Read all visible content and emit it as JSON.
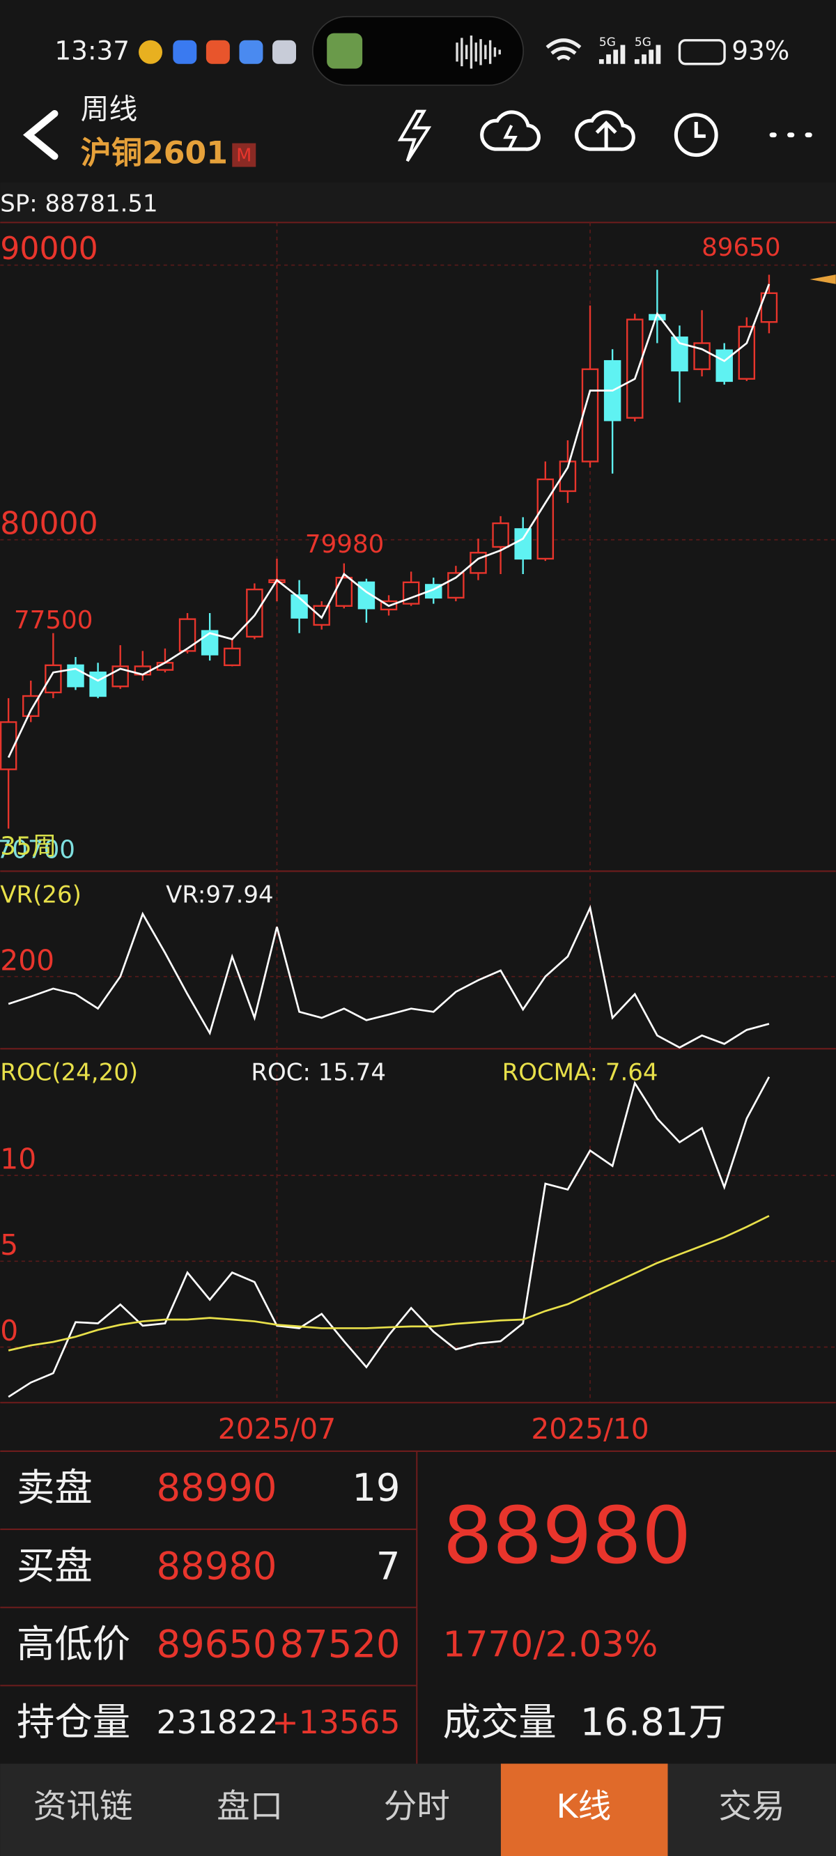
{
  "status_bar": {
    "time": "13:37",
    "network": [
      "5G",
      "5G"
    ],
    "battery": "93%"
  },
  "header": {
    "period": "周线",
    "symbol": "沪铜2601",
    "badge": "M"
  },
  "kline": {
    "type": "candlestick",
    "sp_label": "SP: 88781.51",
    "period_count": "35周",
    "up_color": "#e8352c",
    "down_color": "#5ff2f2",
    "dates": [
      null,
      null,
      null,
      null,
      null,
      null,
      null,
      null,
      null,
      null,
      null,
      null,
      "2025/07",
      null,
      null,
      null,
      null,
      null,
      null,
      null,
      null,
      null,
      null,
      null,
      null,
      null,
      "2025/10",
      null,
      null,
      null,
      null,
      null,
      null,
      null,
      null
    ],
    "candles": [
      {
        "open": 71640,
        "close": 73360,
        "high": 74230,
        "low": 69480
      },
      {
        "open": 73580,
        "close": 74310,
        "high": 74870,
        "low": 73360
      },
      {
        "open": 74440,
        "close": 75430,
        "high": 76600,
        "low": 74230
      },
      {
        "open": 75430,
        "close": 74660,
        "high": 75730,
        "low": 74530
      },
      {
        "open": 75170,
        "close": 74310,
        "high": 75520,
        "low": 74230
      },
      {
        "open": 74660,
        "close": 75390,
        "high": 76160,
        "low": 74570
      },
      {
        "open": 75090,
        "close": 75390,
        "high": 75950,
        "low": 74870
      },
      {
        "open": 75260,
        "close": 75520,
        "high": 76040,
        "low": 75170
      },
      {
        "open": 75950,
        "close": 77110,
        "high": 77330,
        "low": 75860
      },
      {
        "open": 76680,
        "close": 75820,
        "high": 77330,
        "low": 75600
      },
      {
        "open": 75430,
        "close": 76040,
        "high": 76380,
        "low": 75390
      },
      {
        "open": 76470,
        "close": 78190,
        "high": 78410,
        "low": 76380
      },
      {
        "open": 78450,
        "close": 78530,
        "high": 79310,
        "low": 77760
      },
      {
        "open": 77980,
        "close": 77160,
        "high": 78530,
        "low": 76600
      },
      {
        "open": 76900,
        "close": 77590,
        "high": 77760,
        "low": 76730
      },
      {
        "open": 77590,
        "close": 78620,
        "high": 79140,
        "low": 77500
      },
      {
        "open": 78450,
        "close": 77500,
        "high": 78580,
        "low": 76980
      },
      {
        "open": 77460,
        "close": 77760,
        "high": 77980,
        "low": 77240
      },
      {
        "open": 77670,
        "close": 78450,
        "high": 78840,
        "low": 77590
      },
      {
        "open": 78360,
        "close": 77890,
        "high": 78620,
        "low": 77670
      },
      {
        "open": 77890,
        "close": 78790,
        "high": 79050,
        "low": 77760
      },
      {
        "open": 78790,
        "close": 79530,
        "high": 80040,
        "low": 78530
      },
      {
        "open": 79740,
        "close": 80600,
        "high": 80860,
        "low": 78750
      },
      {
        "open": 80390,
        "close": 79310,
        "high": 80820,
        "low": 78750
      },
      {
        "open": 79310,
        "close": 82200,
        "high": 82850,
        "low": 79230
      },
      {
        "open": 81770,
        "close": 82850,
        "high": 83620,
        "low": 81340
      },
      {
        "open": 82850,
        "close": 86210,
        "high": 88530,
        "low": 82630
      },
      {
        "open": 86510,
        "close": 84350,
        "high": 86940,
        "low": 82410
      },
      {
        "open": 84440,
        "close": 88020,
        "high": 88230,
        "low": 84310
      },
      {
        "open": 88190,
        "close": 88020,
        "high": 89830,
        "low": 87160
      },
      {
        "open": 87370,
        "close": 86160,
        "high": 87800,
        "low": 85000
      },
      {
        "open": 86210,
        "close": 87160,
        "high": 88360,
        "low": 85950
      },
      {
        "open": 86900,
        "close": 85780,
        "high": 87160,
        "low": 85650
      },
      {
        "open": 85860,
        "close": 87760,
        "high": 88100,
        "low": 85780
      },
      {
        "open": 87930,
        "close": 88980,
        "high": 89650,
        "low": 87520
      }
    ],
    "ma": {
      "color": "#ffffff",
      "values": [
        72070,
        73790,
        75170,
        75300,
        74870,
        75300,
        75090,
        75520,
        76040,
        76600,
        76380,
        77240,
        78530,
        77890,
        77160,
        78750,
        78100,
        77590,
        77890,
        78190,
        78620,
        79310,
        79610,
        80040,
        81340,
        82630,
        85430,
        85430,
        85860,
        88230,
        87160,
        86940,
        86510,
        87160,
        89310
      ]
    },
    "ylim": [
      67974,
      91552
    ],
    "yticks": [
      80000,
      90000
    ],
    "price_labels": [
      "77500",
      "79980",
      "89650",
      "70700"
    ],
    "vr": {
      "title": "VR(26)",
      "current": "VR:97.94",
      "color": "#ffffff",
      "values": [
        141,
        157,
        174,
        162,
        131,
        200,
        335,
        251,
        162,
        78,
        243,
        111,
        307,
        124,
        111,
        131,
        106,
        118,
        131,
        124,
        167,
        192,
        213,
        129,
        200,
        243,
        348,
        111,
        162,
        73,
        47,
        73,
        55,
        85,
        97.94
      ],
      "ylim": [
        47,
        427
      ],
      "yticks": [
        200
      ]
    },
    "roc": {
      "title": "ROC(24,20)",
      "current": "ROC: 15.74",
      "ma_current": "ROCMA: 7.64",
      "color": "#ffffff",
      "ma_color": "#e8e04a",
      "values": [
        -2.9,
        -2.07,
        -1.52,
        1.45,
        1.38,
        2.48,
        1.24,
        1.38,
        4.34,
        2.76,
        4.34,
        3.79,
        1.24,
        1.1,
        1.93,
        0.34,
        -1.17,
        0.69,
        2.28,
        0.9,
        -0.14,
        0.21,
        0.34,
        1.38,
        9.52,
        9.17,
        11.45,
        10.55,
        15.38,
        13.31,
        11.93,
        12.76,
        9.31,
        13.31,
        15.74
      ],
      "ma_values": [
        -0.2,
        0.1,
        0.3,
        0.6,
        1.0,
        1.3,
        1.5,
        1.6,
        1.6,
        1.7,
        1.6,
        1.5,
        1.3,
        1.2,
        1.1,
        1.1,
        1.1,
        1.15,
        1.2,
        1.2,
        1.35,
        1.45,
        1.55,
        1.6,
        2.1,
        2.5,
        3.1,
        3.7,
        4.3,
        4.9,
        5.4,
        5.9,
        6.4,
        7.0,
        7.64
      ],
      "ylim": [
        -3.24,
        17.38
      ],
      "yticks": [
        0,
        5,
        10
      ]
    }
  },
  "quote": {
    "rows": [
      [
        "卖盘",
        88990,
        19
      ],
      [
        "买盘",
        88980,
        7
      ],
      [
        "高低价",
        89650,
        87520
      ],
      [
        "持仓量",
        231822,
        "+13565"
      ]
    ],
    "last": 88980,
    "change": "1770/2.03%",
    "volume_label": "成交量",
    "volume": "16.81万"
  },
  "tabs": [
    "资讯链",
    "盘口",
    "分时",
    "K线",
    "交易"
  ],
  "active_tab": 3
}
